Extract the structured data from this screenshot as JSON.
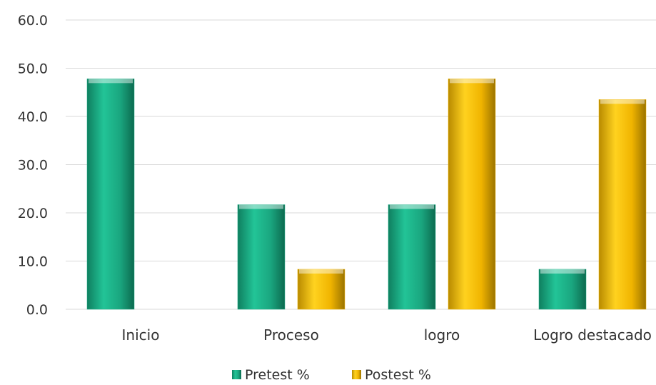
{
  "chart_data": {
    "type": "bar",
    "categories": [
      "Inicio",
      "Proceso",
      "logro",
      "Logro destacado"
    ],
    "series": [
      {
        "name": "Pretest %",
        "values": [
          47.8,
          21.7,
          21.7,
          8.3
        ],
        "color": "#1fb088"
      },
      {
        "name": "Postest %",
        "values": [
          0.0,
          8.3,
          47.8,
          43.5
        ],
        "color": "#f2b705"
      }
    ],
    "ylim": [
      0,
      60
    ],
    "yticks": [
      "0.0",
      "10.0",
      "20.0",
      "30.0",
      "40.0",
      "50.0",
      "60.0"
    ],
    "grid": true,
    "legend": "bottom",
    "title": "",
    "xlabel": "",
    "ylabel": ""
  }
}
